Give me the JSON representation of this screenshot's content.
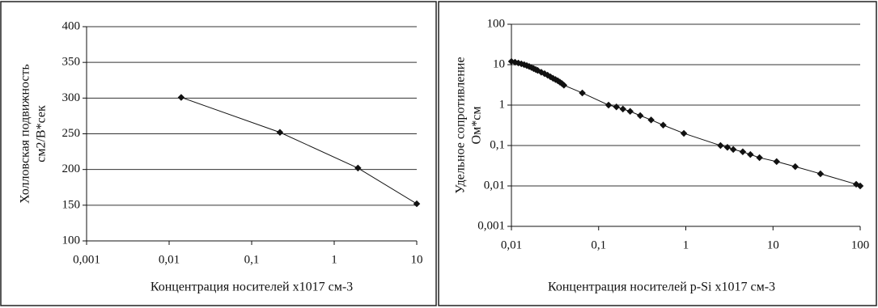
{
  "chart_data": [
    {
      "type": "line",
      "ylabel": [
        "Холловская подвижность",
        "см2/В*сек"
      ],
      "xlabel": "Концентрация носителей x1017 см-3",
      "xscale": "log",
      "yscale": "linear",
      "grid": true,
      "color": "#111",
      "x": [
        0.014,
        0.22,
        1.94,
        10
      ],
      "values": [
        301,
        252,
        202,
        152
      ],
      "xlim": [
        0.001,
        10
      ],
      "xticks": [
        {
          "value": 0.001,
          "label": "0,001"
        },
        {
          "value": 0.01,
          "label": "0,01"
        },
        {
          "value": 0.1,
          "label": "0,1"
        },
        1,
        10
      ],
      "ylim": [
        100,
        400
      ],
      "yticks": [
        100,
        150,
        200,
        250,
        300,
        350,
        400
      ]
    },
    {
      "type": "line",
      "ylabel": [
        "Удельное сопротивление",
        "Ом*см"
      ],
      "xlabel": "Концентрация носителей p-Si x1017 см-3",
      "xscale": "log",
      "yscale": "log",
      "grid": true,
      "color": "#111",
      "x": [
        0.01,
        0.011,
        0.012,
        0.013,
        0.014,
        0.015,
        0.016,
        0.017,
        0.018,
        0.019,
        0.02,
        0.022,
        0.024,
        0.026,
        0.028,
        0.03,
        0.032,
        0.034,
        0.036,
        0.038,
        0.04,
        0.065,
        0.13,
        0.16,
        0.19,
        0.23,
        0.3,
        0.4,
        0.55,
        0.95,
        2.5,
        3,
        3.5,
        4.5,
        5.5,
        7,
        11,
        18,
        35,
        90,
        100
      ],
      "values": [
        12,
        11.5,
        11,
        10.5,
        10,
        9.5,
        9,
        8.5,
        8,
        7.6,
        7.2,
        6.5,
        6,
        5.5,
        5,
        4.6,
        4.3,
        4,
        3.7,
        3.4,
        3.1,
        2.0,
        1.0,
        0.9,
        0.8,
        0.7,
        0.55,
        0.43,
        0.32,
        0.2,
        0.1,
        0.09,
        0.08,
        0.07,
        0.06,
        0.05,
        0.04,
        0.03,
        0.02,
        0.011,
        0.01
      ],
      "xlim": [
        0.01,
        100
      ],
      "xticks": [
        {
          "value": 0.01,
          "label": "0,01"
        },
        {
          "value": 0.1,
          "label": "0,1"
        },
        1,
        10,
        100
      ],
      "ylim": [
        0.001,
        100
      ],
      "yticks": [
        {
          "value": 0.001,
          "label": "0,001"
        },
        {
          "value": 0.01,
          "label": "0,01"
        },
        {
          "value": 0.1,
          "label": "0,1"
        },
        1,
        10,
        100
      ]
    }
  ]
}
